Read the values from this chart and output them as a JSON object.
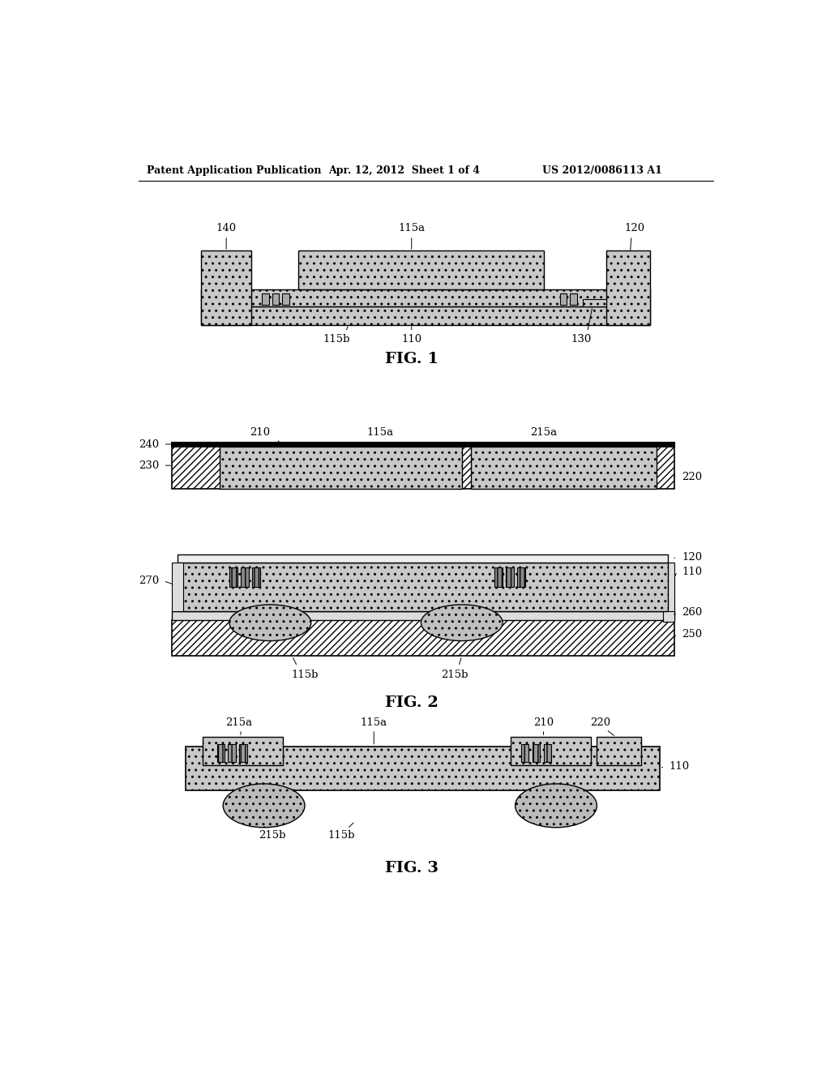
{
  "bg_color": "#ffffff",
  "header_left": "Patent Application Publication",
  "header_center": "Apr. 12, 2012  Sheet 1 of 4",
  "header_right": "US 2012/0086113 A1",
  "fig1_label": "FIG. 1",
  "fig2_label": "FIG. 2",
  "fig3_label": "FIG. 3",
  "dot_fill": "#c8c8c8",
  "line_color": "#000000"
}
